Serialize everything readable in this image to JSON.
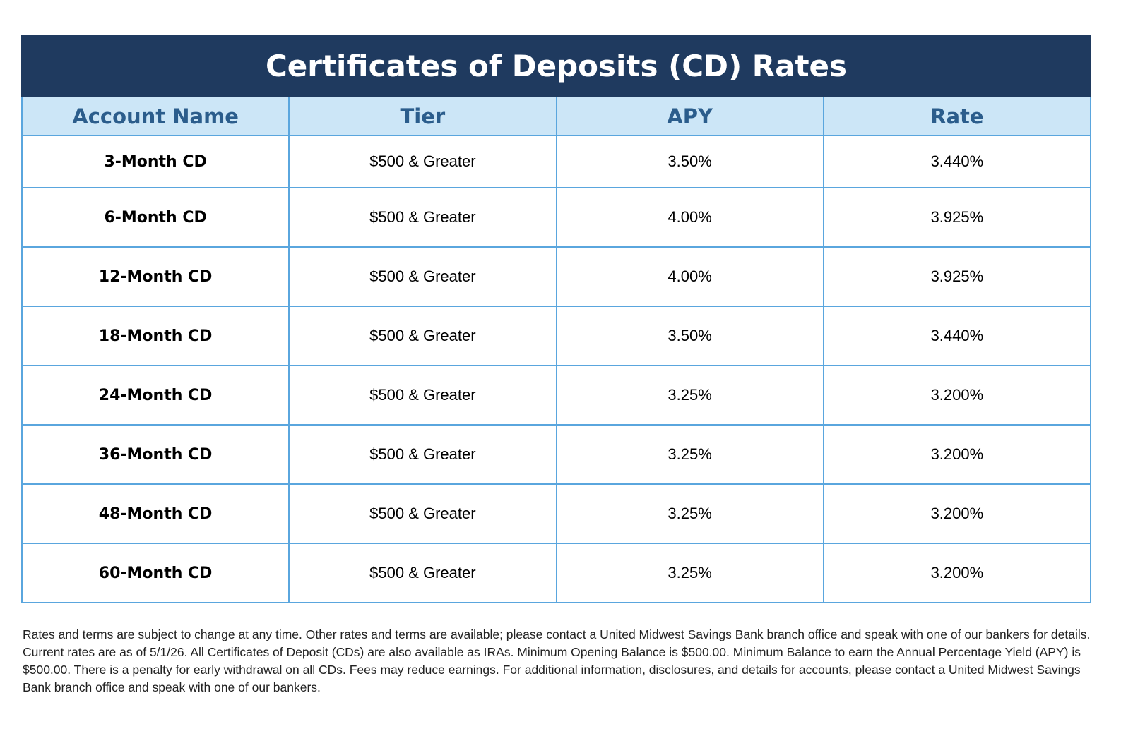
{
  "table": {
    "title": "Certificates of Deposits (CD) Rates",
    "headers": [
      "Account Name",
      "Tier",
      "APY",
      "Rate"
    ],
    "rows": [
      {
        "name": "3-Month CD",
        "tier": "$500 & Greater",
        "apy": "3.50%",
        "rate": "3.440%"
      },
      {
        "name": "6-Month CD",
        "tier": "$500 & Greater",
        "apy": "4.00%",
        "rate": "3.925%"
      },
      {
        "name": "12-Month CD",
        "tier": "$500 & Greater",
        "apy": "4.00%",
        "rate": "3.925%"
      },
      {
        "name": "18-Month CD",
        "tier": "$500 & Greater",
        "apy": "3.50%",
        "rate": "3.440%"
      },
      {
        "name": "24-Month CD",
        "tier": "$500 & Greater",
        "apy": "3.25%",
        "rate": "3.200%"
      },
      {
        "name": "36-Month CD",
        "tier": "$500 & Greater",
        "apy": "3.25%",
        "rate": "3.200%"
      },
      {
        "name": "48-Month CD",
        "tier": "$500 & Greater",
        "apy": "3.25%",
        "rate": "3.200%"
      },
      {
        "name": "60-Month CD",
        "tier": "$500 & Greater",
        "apy": "3.25%",
        "rate": "3.200%"
      }
    ]
  },
  "disclaimer": "Rates and terms are subject to change at any time. Other rates and terms are available; please contact a United Midwest Savings Bank branch office and speak with one of our bankers for details. Current rates are as of 5/1/26. All Certificates of Deposit (CDs) are also available as IRAs. Minimum Opening Balance is $500.00. Minimum Balance to earn the Annual Percentage Yield (APY) is $500.00. There is a penalty for early withdrawal on all CDs. Fees may reduce earnings. For additional information, disclosures, and details for accounts, please contact a United Midwest Savings Bank branch office and speak with one of our bankers.",
  "colors": {
    "title_bg": "#1f3a5f",
    "header_bg": "#cce6f7",
    "header_text": "#2b5d8c",
    "grid": "#5aa6de"
  }
}
